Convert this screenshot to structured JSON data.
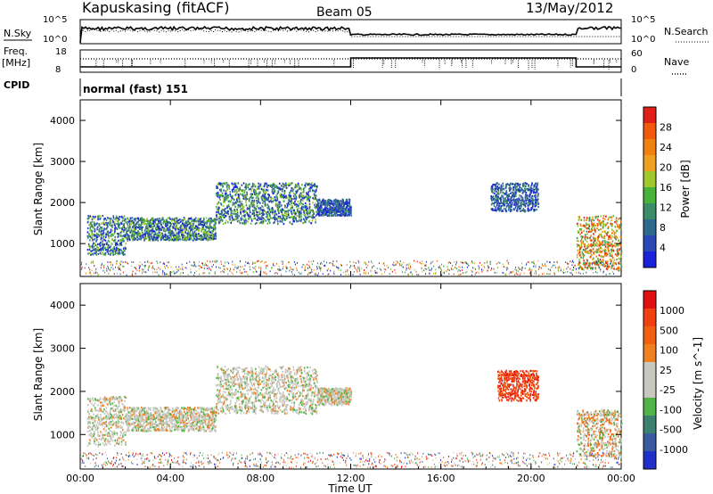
{
  "header": {
    "station": "Kapuskasing (fitACF)",
    "beam": "Beam 05",
    "date": "13/May/2012"
  },
  "panels": {
    "nsky_label": "N.Sky",
    "nsky_ticks": [
      "10^5",
      "10^0"
    ],
    "nsearch_ticks": [
      "10^5",
      "10^0"
    ],
    "nsearch_label": "N.Search",
    "freq_label": "Freq.",
    "freq_unit": "[MHz]",
    "freq_ticks": [
      "18",
      "8"
    ],
    "nave_ticks": [
      "60",
      "0"
    ],
    "nave_label": "Nave",
    "cpid_label": "CPID",
    "cpid_value": "normal (fast) 151"
  },
  "colors": {
    "power": [
      "#1c22d8",
      "#2a48b6",
      "#2f6a8e",
      "#3c8c6a",
      "#48b23a",
      "#a0c82c",
      "#f0a020",
      "#f08010",
      "#f05a0a",
      "#e02018"
    ],
    "velocity": [
      "#2030c8",
      "#3a5aa0",
      "#3c8070",
      "#50b448",
      "#c8c8c0",
      "#c8c8c0",
      "#f08020",
      "#f06010",
      "#f04010",
      "#e01010"
    ]
  },
  "chart_data": [
    {
      "type": "heatmap",
      "name": "power",
      "ylabel": "Slant Range [km]",
      "ylim": [
        200,
        4500
      ],
      "yticks": [
        "4000",
        "3000",
        "2000",
        "1000"
      ],
      "colorbar_label": "Power [dB]",
      "colorbar_ticks": [
        "28",
        "24",
        "20",
        "16",
        "12",
        "8",
        "4"
      ],
      "xlim": [
        "00:00",
        "24:00"
      ],
      "bands": [
        {
          "start": 0.3,
          "end": 2.0,
          "range_low": 750,
          "range_high": 1700,
          "level": "mid"
        },
        {
          "start": 2.0,
          "end": 6.0,
          "range_low": 1100,
          "range_high": 1650,
          "level": "mid"
        },
        {
          "start": 6.0,
          "end": 10.5,
          "range_low": 1500,
          "range_high": 2500,
          "level": "mid"
        },
        {
          "start": 10.5,
          "end": 12.0,
          "range_low": 1700,
          "range_high": 2100,
          "level": "low"
        },
        {
          "start": 18.2,
          "end": 20.3,
          "range_low": 1800,
          "range_high": 2500,
          "level": "low"
        },
        {
          "start": 22.0,
          "end": 24.0,
          "range_low": 400,
          "range_high": 1700,
          "level": "high"
        }
      ]
    },
    {
      "type": "heatmap",
      "name": "velocity",
      "ylabel": "Slant Range [km]",
      "ylim": [
        200,
        4500
      ],
      "yticks": [
        "4000",
        "3000",
        "2000",
        "1000"
      ],
      "colorbar_label": "Velocity [m s^-1]",
      "colorbar_ticks": [
        "1000",
        "500",
        "100",
        "25",
        "-25",
        "-100",
        "-500",
        "-1000"
      ],
      "xlabel": "Time UT",
      "xticks": [
        "00:00",
        "04:00",
        "08:00",
        "12:00",
        "16:00",
        "20:00",
        "00:00"
      ],
      "xlim": [
        "00:00",
        "24:00"
      ],
      "bands": [
        {
          "start": 0.3,
          "end": 2.0,
          "range_low": 750,
          "range_high": 1900,
          "level": "ground"
        },
        {
          "start": 2.0,
          "end": 6.0,
          "range_low": 1100,
          "range_high": 1650,
          "level": "ground"
        },
        {
          "start": 6.0,
          "end": 10.5,
          "range_low": 1500,
          "range_high": 2600,
          "level": "ground"
        },
        {
          "start": 10.5,
          "end": 12.0,
          "range_low": 1700,
          "range_high": 2100,
          "level": "ground"
        },
        {
          "start": 18.5,
          "end": 20.3,
          "range_low": 1800,
          "range_high": 2500,
          "level": "away"
        },
        {
          "start": 22.0,
          "end": 24.0,
          "range_low": 500,
          "range_high": 1600,
          "level": "mixed"
        }
      ]
    }
  ]
}
